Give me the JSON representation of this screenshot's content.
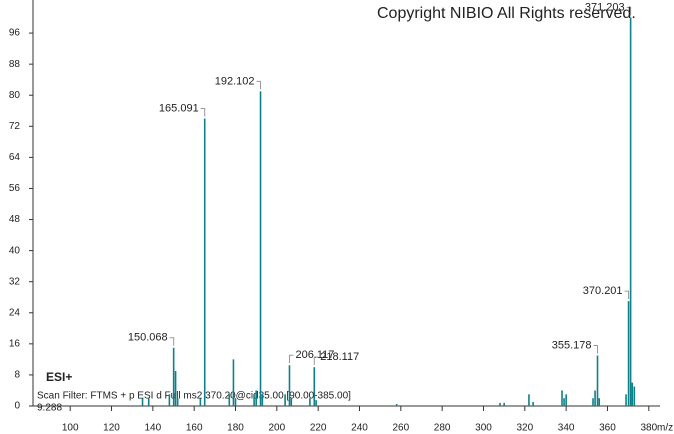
{
  "chart_data": {
    "type": "spectrum",
    "title": "Copyright NIBIO All Rights reserved.",
    "ionization": "ESI+",
    "scan_filter": "Scan Filter: FTMS + p ESI d Full ms2 370.20@cid35.00 [90.00-385.00]",
    "retention_time": "9.288",
    "x_label": "m/z",
    "color": "#0f7f88",
    "label_color": "#2a3aa8",
    "x": [
      135,
      138,
      148,
      150.068,
      151,
      152,
      163,
      165.091,
      177,
      179,
      180,
      189,
      190,
      192.102,
      193,
      204,
      206.117,
      207,
      216,
      218.117,
      219,
      258,
      308,
      310,
      322,
      324,
      338,
      339,
      340,
      353,
      354,
      355.178,
      356,
      369,
      370.201,
      371.203,
      372,
      373
    ],
    "values": [
      2,
      2,
      3,
      15,
      9,
      2,
      2,
      74,
      3,
      12,
      2,
      3,
      4,
      81,
      3,
      3,
      10.5,
      2,
      2,
      10,
      1.5,
      0.5,
      0.8,
      0.8,
      3,
      1,
      4,
      2,
      3,
      2,
      4,
      13,
      2,
      3,
      27,
      100,
      6,
      5
    ],
    "peak_labels": [
      null,
      null,
      null,
      "150.068",
      null,
      null,
      null,
      "165.091",
      null,
      null,
      null,
      null,
      null,
      "192.102",
      null,
      null,
      "206.117",
      null,
      null,
      "218.117",
      null,
      null,
      null,
      null,
      null,
      null,
      null,
      null,
      null,
      null,
      null,
      "355.178",
      null,
      null,
      "370.201",
      "371.203",
      null,
      null
    ],
    "xlim": [
      82,
      383
    ],
    "ylim": [
      0,
      104
    ],
    "xticks": [
      100,
      120,
      140,
      160,
      180,
      200,
      220,
      240,
      260,
      280,
      300,
      320,
      340,
      360,
      380
    ],
    "yticks": [
      0,
      8,
      16,
      24,
      32,
      40,
      48,
      56,
      64,
      72,
      80,
      88,
      96
    ],
    "grid": false
  }
}
